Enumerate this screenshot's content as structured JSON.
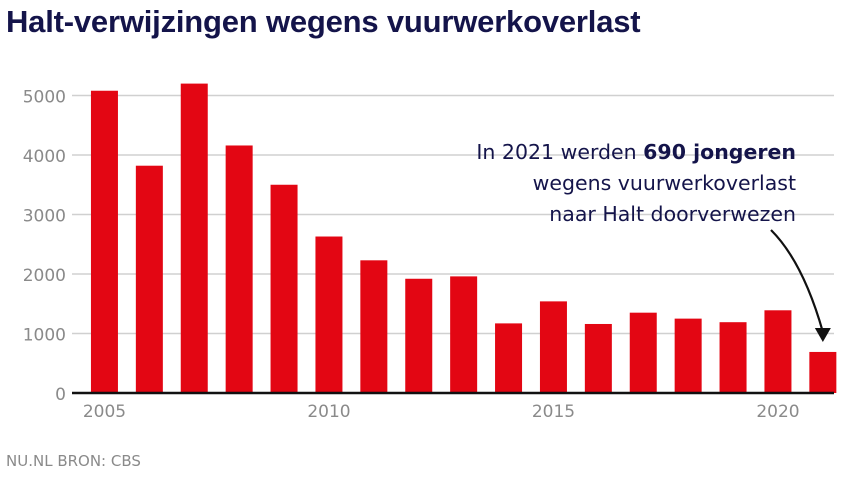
{
  "title": "Halt-verwijzingen wegens vuurwerkoverlast",
  "source": "NU.NL BRON: CBS",
  "annotation": {
    "before": "In 2021 werden ",
    "bold": "690 jongeren",
    "line2": "wegens vuurwerkoverlast",
    "line3": "naar Halt doorverwezen"
  },
  "colors": {
    "bar": "#e30613",
    "title": "#14144a",
    "grid": "#d0d0d0",
    "tick": "#8a8a8a",
    "axis": "#111111"
  },
  "chart_data": {
    "type": "bar",
    "categories": [
      "2005",
      "2006",
      "2007",
      "2008",
      "2009",
      "2010",
      "2011",
      "2012",
      "2013",
      "2014",
      "2015",
      "2016",
      "2017",
      "2018",
      "2019",
      "2020",
      "2021"
    ],
    "values": [
      5080,
      3820,
      5200,
      4160,
      3500,
      2630,
      2230,
      1920,
      1960,
      1170,
      1540,
      1160,
      1350,
      1250,
      1190,
      1390,
      690
    ],
    "x_tick_labels": [
      "2005",
      "2010",
      "2015",
      "2020"
    ],
    "y_ticks": [
      0,
      1000,
      2000,
      3000,
      4000,
      5000
    ],
    "ylim": [
      0,
      5500
    ],
    "grid": true,
    "title": "Halt-verwijzingen wegens vuurwerkoverlast",
    "xlabel": "",
    "ylabel": ""
  }
}
